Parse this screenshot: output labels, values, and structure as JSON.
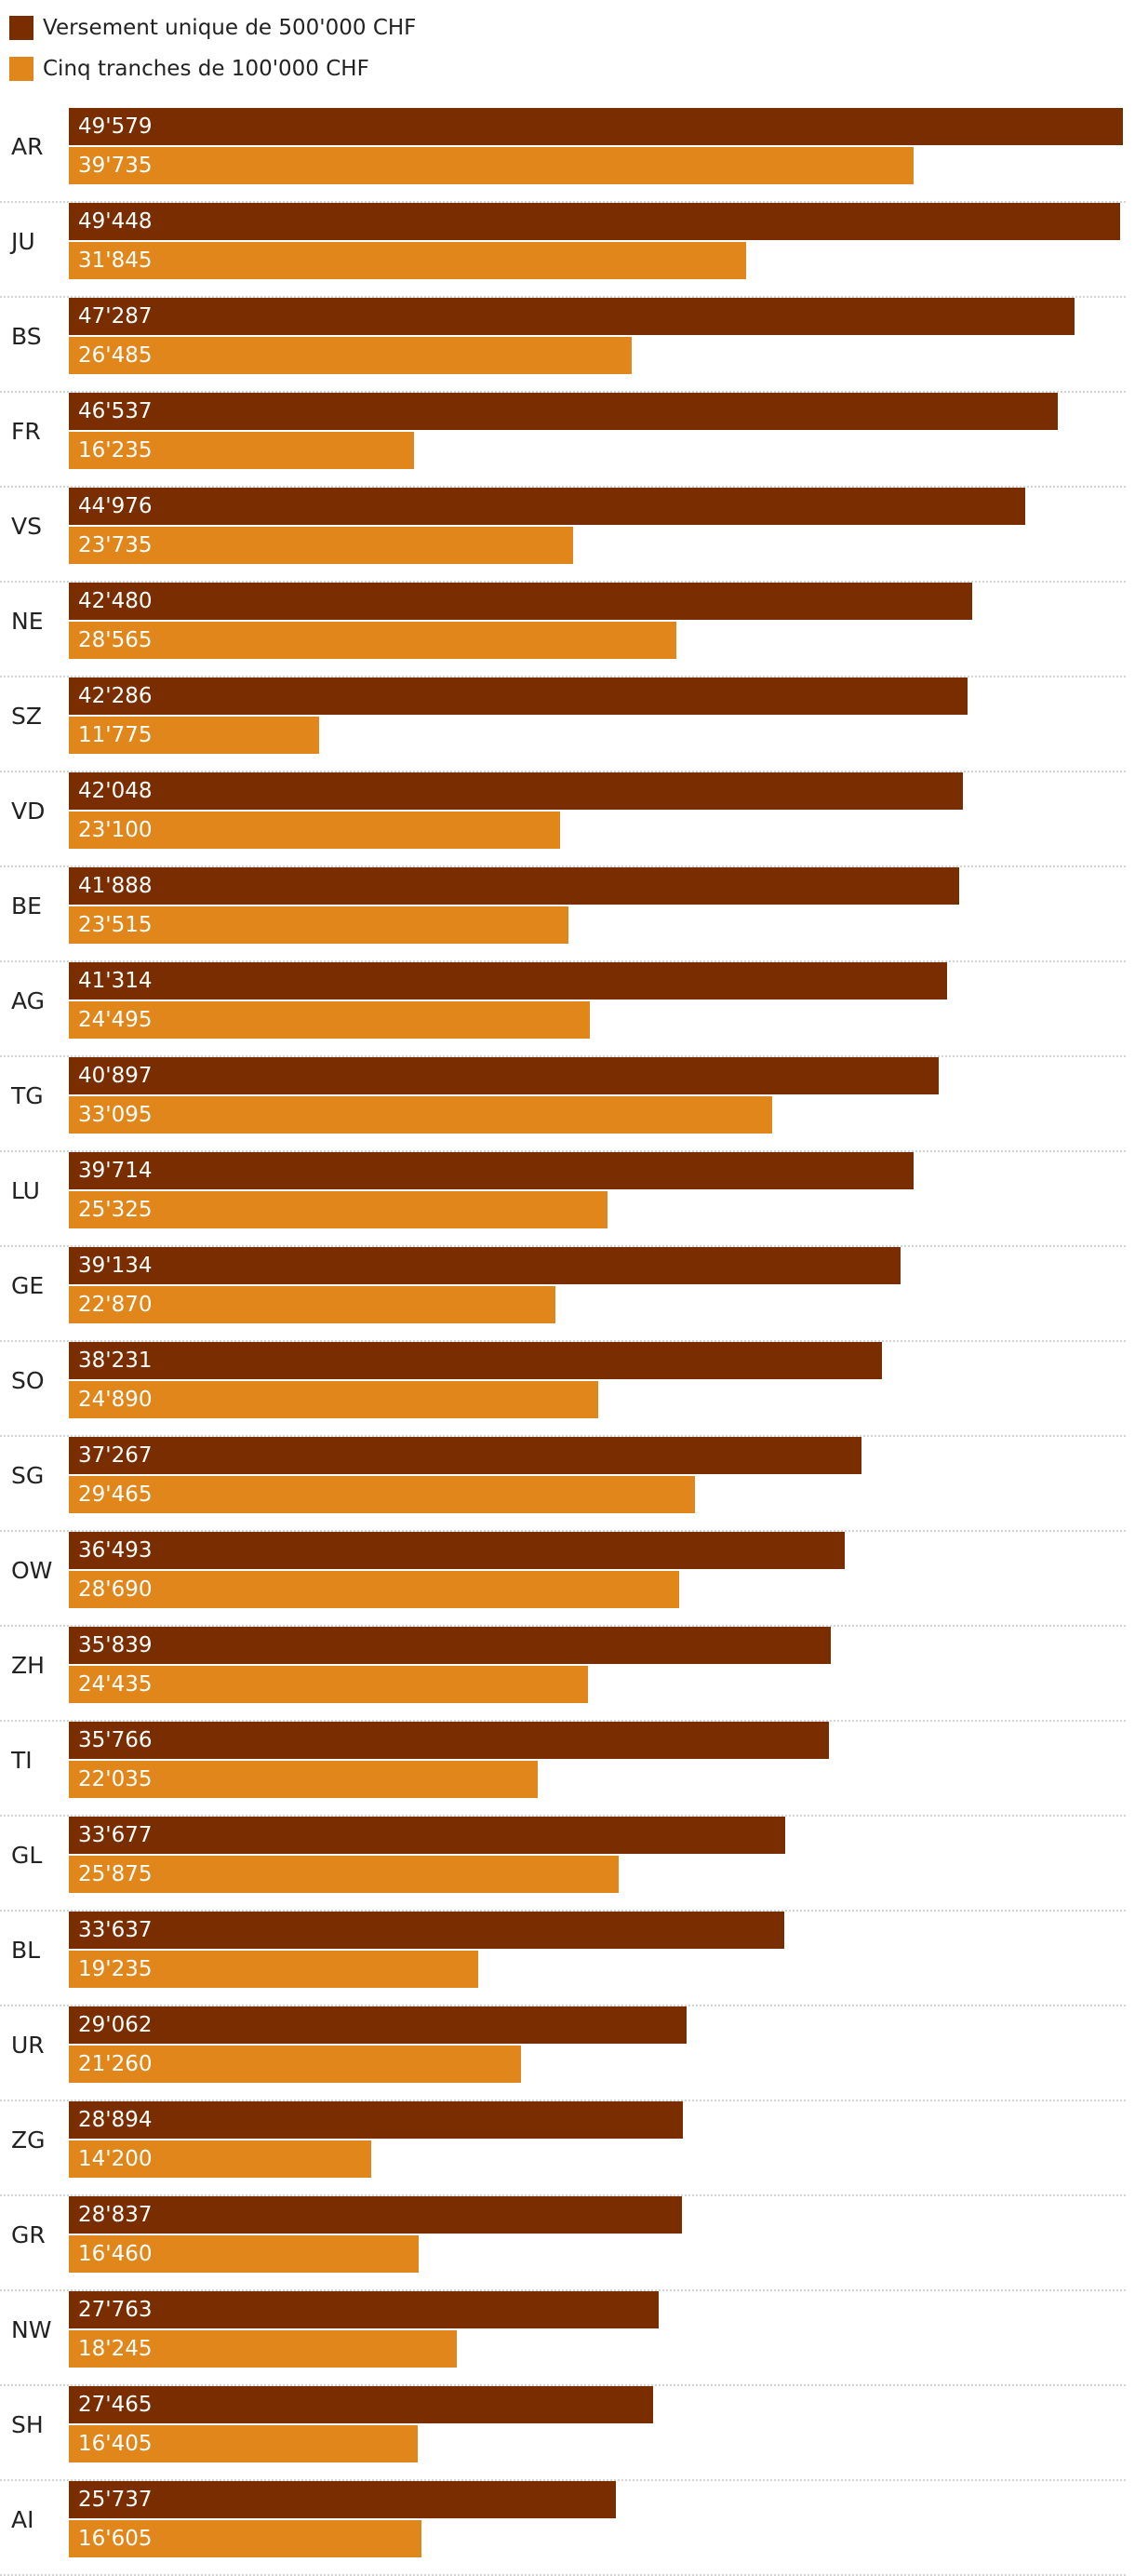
{
  "chart_data": {
    "type": "bar",
    "orientation": "horizontal",
    "title": "",
    "xlabel": "",
    "ylabel": "",
    "legend_position": "top-left",
    "grid": false,
    "xlim": [
      0,
      49579
    ],
    "categories": [
      "AR",
      "JU",
      "BS",
      "FR",
      "VS",
      "NE",
      "SZ",
      "VD",
      "BE",
      "AG",
      "TG",
      "LU",
      "GE",
      "SO",
      "SG",
      "OW",
      "ZH",
      "TI",
      "GL",
      "BL",
      "UR",
      "ZG",
      "GR",
      "NW",
      "SH",
      "AI"
    ],
    "series": [
      {
        "name": "Versement unique de 500'000 CHF",
        "color": "#7a2e00",
        "values": [
          49579,
          49448,
          47287,
          46537,
          44976,
          42480,
          42286,
          42048,
          41888,
          41314,
          40897,
          39714,
          39134,
          38231,
          37267,
          36493,
          35839,
          35766,
          33677,
          33637,
          29062,
          28894,
          28837,
          27763,
          27465,
          25737
        ],
        "labels": [
          "49'579",
          "49'448",
          "47'287",
          "46'537",
          "44'976",
          "42'480",
          "42'286",
          "42'048",
          "41'888",
          "41'314",
          "40'897",
          "39'714",
          "39'134",
          "38'231",
          "37'267",
          "36'493",
          "35'839",
          "35'766",
          "33'677",
          "33'637",
          "29'062",
          "28'894",
          "28'837",
          "27'763",
          "27'465",
          "25'737"
        ]
      },
      {
        "name": "Cinq tranches de 100'000 CHF",
        "color": "#e0861a",
        "values": [
          39735,
          31845,
          26485,
          16235,
          23735,
          28565,
          11775,
          23100,
          23515,
          24495,
          33095,
          25325,
          22870,
          24890,
          29465,
          28690,
          24435,
          22035,
          25875,
          19235,
          21260,
          14200,
          16460,
          18245,
          16405,
          16605
        ],
        "labels": [
          "39'735",
          "31'845",
          "26'485",
          "16'235",
          "23'735",
          "28'565",
          "11'775",
          "23'100",
          "23'515",
          "24'495",
          "33'095",
          "25'325",
          "22'870",
          "24'890",
          "29'465",
          "28'690",
          "24'435",
          "22'035",
          "25'875",
          "19'235",
          "21'260",
          "14'200",
          "16'460",
          "18'245",
          "16'405",
          "16'605"
        ]
      }
    ]
  }
}
